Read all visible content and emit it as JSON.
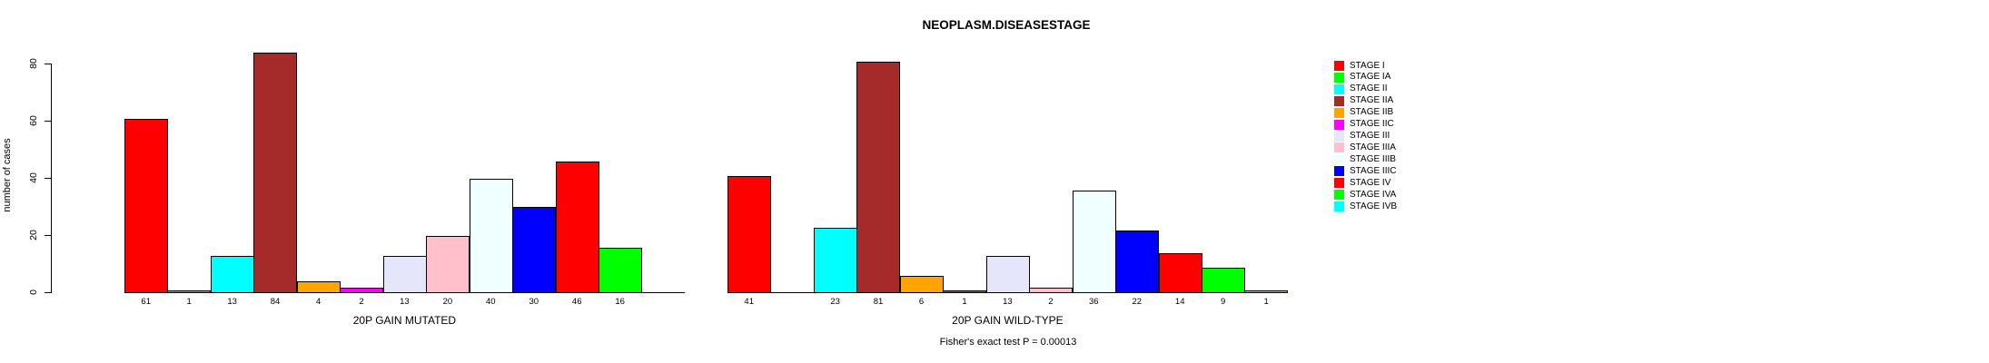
{
  "chart_data": {
    "type": "bar",
    "title": "NEOPLASM.DISEASESTAGE",
    "ylabel": "number of cases",
    "ylim": [
      0,
      80
    ],
    "yticks": [
      0,
      20,
      40,
      60,
      80
    ],
    "grid": false,
    "legend_position": "right",
    "categories": [
      "STAGE I",
      "STAGE IA",
      "STAGE II",
      "STAGE IIA",
      "STAGE IIB",
      "STAGE IIC",
      "STAGE III",
      "STAGE IIIA",
      "STAGE IIIB",
      "STAGE IIIC",
      "STAGE IV",
      "STAGE IVA",
      "STAGE IVB"
    ],
    "colors": [
      "#FF0000",
      "#00FF00",
      "#00FFFF",
      "#A52A2A",
      "#FFA500",
      "#FF00FF",
      "#E6E6FA",
      "#FFC0CB",
      "#F0FFFF",
      "#0000FF",
      "#FF0000",
      "#00FF00",
      "#00FFFF"
    ],
    "series": [
      {
        "name": "20P GAIN MUTATED",
        "values": [
          61,
          1,
          13,
          84,
          4,
          2,
          13,
          20,
          40,
          30,
          46,
          16,
          0
        ]
      },
      {
        "name": "20P GAIN WILD-TYPE",
        "values": [
          41,
          0,
          23,
          81,
          6,
          1,
          13,
          2,
          36,
          22,
          14,
          9,
          1
        ]
      }
    ],
    "bar_value_labels": true,
    "zero_bars_hidden": true,
    "annotation": "Fisher's exact test P = 0.00013",
    "text_color": "#000000",
    "background_color": "#FFFFFF"
  }
}
